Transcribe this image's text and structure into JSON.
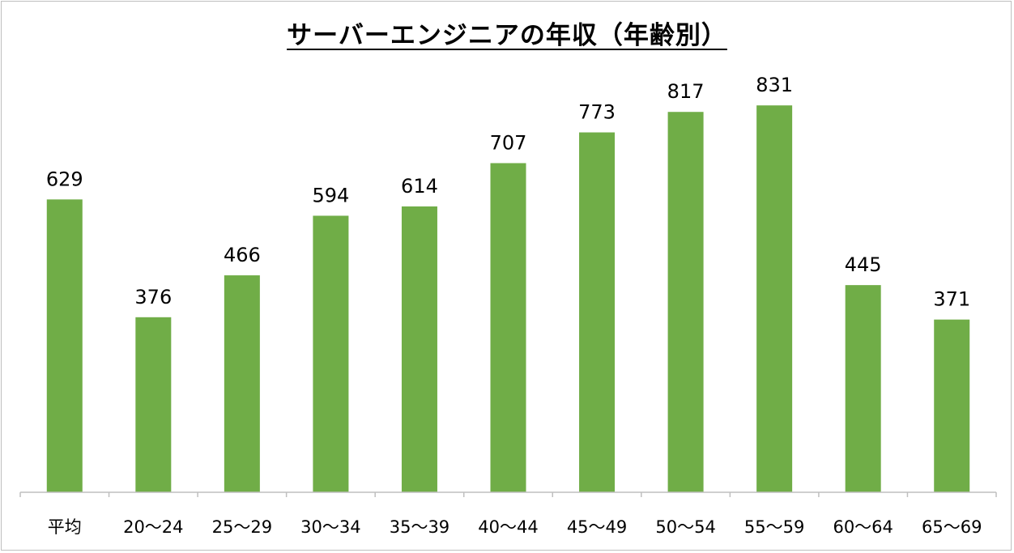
{
  "chart_data": {
    "type": "bar",
    "title": "サーバーエンジニアの年収（年齢別）",
    "categories": [
      "平均",
      "20〜24",
      "25〜29",
      "30〜34",
      "35〜39",
      "40〜44",
      "45〜49",
      "50〜54",
      "55〜59",
      "60〜64",
      "65〜69"
    ],
    "values": [
      629,
      376,
      466,
      594,
      614,
      707,
      773,
      817,
      831,
      445,
      371
    ],
    "xlabel": "",
    "ylabel": "",
    "ylim": [
      0,
      900
    ],
    "grid": false,
    "legend": "none",
    "bar_color": "#70ad47",
    "axis_color": "#bfbfbf"
  }
}
